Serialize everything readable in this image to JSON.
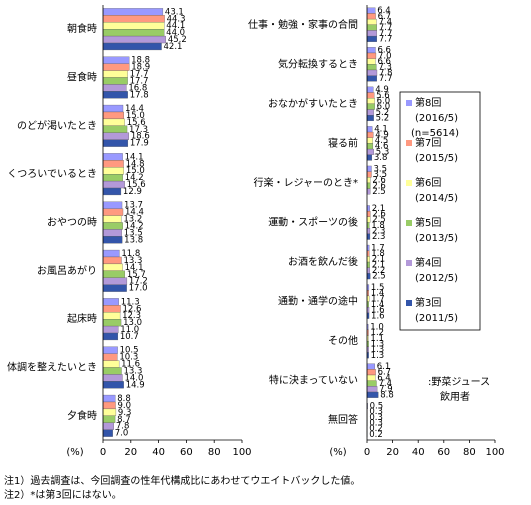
{
  "chart_data": [
    {
      "type": "bar",
      "orientation": "horizontal",
      "xlabel": "(%)",
      "xlim": [
        0,
        100
      ],
      "xticks": [
        0,
        20,
        40,
        60,
        80,
        100
      ],
      "categories": [
        "朝食時",
        "昼食時",
        "のどが渇いたとき",
        "くつろいでいるとき",
        "おやつの時",
        "お風呂あがり",
        "起床時",
        "体調を整えたいとき",
        "夕食時"
      ],
      "series": [
        {
          "name": "第8回",
          "color": "#9999ff",
          "values": [
            43.1,
            18.8,
            14.4,
            14.1,
            13.7,
            11.8,
            11.3,
            10.5,
            8.8
          ],
          "value_labels": [
            "43.1",
            "18.8",
            "14.4",
            "14.1",
            "13.7",
            "11.8",
            "11.3",
            "10.5",
            "8.8"
          ]
        },
        {
          "name": "第7回",
          "color": "#ff9980",
          "values": [
            44.3,
            18.9,
            15.0,
            14.8,
            14.4,
            13.3,
            12.6,
            10.3,
            9.0
          ],
          "value_labels": [
            "44.3",
            "18.9",
            "15.0",
            "14.8",
            "14.4",
            "13.3",
            "12.6",
            "10.3",
            "9.0"
          ]
        },
        {
          "name": "第6回",
          "color": "#ffff99",
          "values": [
            44.1,
            17.7,
            15.6,
            15.0,
            13.2,
            14.1,
            12.3,
            11.6,
            9.3
          ],
          "value_labels": [
            "44.1",
            "17.7",
            "15.6",
            "15.0",
            "13.2",
            "14.1",
            "12.3",
            "11.6",
            "9.3"
          ]
        },
        {
          "name": "第5回",
          "color": "#99cc66",
          "values": [
            44.0,
            17.7,
            17.3,
            14.2,
            14.2,
            15.7,
            13.0,
            13.3,
            8.7
          ],
          "value_labels": [
            "44.0",
            "17.7",
            "17.3",
            "14.2",
            "14.2",
            "15.7",
            "13.0",
            "13.3",
            "8.7"
          ]
        },
        {
          "name": "第4回",
          "color": "#b399d9",
          "values": [
            45.2,
            16.8,
            18.6,
            15.6,
            13.5,
            17.2,
            11.0,
            14.0,
            7.8
          ],
          "value_labels": [
            "45.2",
            "16.8",
            "18.6",
            "15.6",
            "13.5",
            "17.2",
            "11.0",
            "14.0",
            "7.8"
          ]
        },
        {
          "name": "第3回",
          "color": "#3355aa",
          "values": [
            42.1,
            17.8,
            17.9,
            12.9,
            13.8,
            17.0,
            10.7,
            14.9,
            7.0
          ],
          "value_labels": [
            "42.1",
            "17.8",
            "17.9",
            "12.9",
            "13.8",
            "17.0",
            "10.7",
            "14.9",
            "7.0"
          ]
        }
      ]
    },
    {
      "type": "bar",
      "orientation": "horizontal",
      "xlabel": "(%)",
      "xlim": [
        0,
        100
      ],
      "xticks": [
        0,
        20,
        40,
        60,
        80,
        100
      ],
      "annotation": [
        ":野菜ジュース",
        "飲用者"
      ],
      "categories": [
        "仕事・勉強・家事の合間",
        "気分転換するとき",
        "おなかがすいたとき",
        "寝る前",
        "行楽・レジャーのとき*",
        "運動・スポーツの後",
        "お酒を飲んだ後",
        "通勤・通学の途中",
        "その他",
        "特に決まっていない",
        "無回答"
      ],
      "series": [
        {
          "name": "第8回",
          "color": "#9999ff",
          "values": [
            6.4,
            6.6,
            4.9,
            4.1,
            3.5,
            2.1,
            1.7,
            1.5,
            1.0,
            6.1,
            0.5
          ],
          "value_labels": [
            "6.4",
            "6.6",
            "4.9",
            "4.1",
            "3.5",
            "2.1",
            "1.7",
            "1.5",
            "1.0",
            "6.1",
            "0.5"
          ]
        },
        {
          "name": "第7回",
          "color": "#ff9980",
          "values": [
            6.7,
            7.0,
            5.6,
            4.9,
            3.5,
            2.6,
            1.8,
            1.4,
            1.2,
            6.7,
            0.3
          ],
          "value_labels": [
            "6.7",
            "7.0",
            "5.6",
            "4.9",
            "3.5",
            "2.6",
            "1.8",
            "1.4",
            "1.2",
            "6.7",
            "0.3"
          ]
        },
        {
          "name": "第6回",
          "color": "#ffff99",
          "values": [
            7.4,
            6.6,
            6.0,
            4.5,
            2.6,
            2.5,
            2.1,
            1.7,
            1.1,
            6.4,
            0.3
          ],
          "value_labels": [
            "7.4",
            "6.6",
            "6.0",
            "4.5",
            "2.6",
            "2.5",
            "2.1",
            "1.7",
            "1.1",
            "6.4",
            "0.3"
          ]
        },
        {
          "name": "第5回",
          "color": "#99cc66",
          "values": [
            7.7,
            7.3,
            6.0,
            4.6,
            2.6,
            1.8,
            2.1,
            1.4,
            1.3,
            7.4,
            0.3
          ],
          "value_labels": [
            "7.7",
            "7.3",
            "6.0",
            "4.6",
            "2.6",
            "1.8",
            "2.1",
            "1.4",
            "1.3",
            "7.4",
            "0.3"
          ]
        },
        {
          "name": "第4回",
          "color": "#b399d9",
          "values": [
            7.7,
            7.8,
            5.2,
            5.3,
            2.5,
            2.3,
            2.2,
            1.6,
            1.3,
            7.9,
            0.2
          ],
          "value_labels": [
            "7.7",
            "7.8",
            "5.2",
            "5.3",
            "2.5",
            "2.3",
            "2.2",
            "1.6",
            "1.3",
            "7.9",
            "0.2"
          ]
        },
        {
          "name": "第3回",
          "color": "#3355aa",
          "values": [
            7.7,
            7.7,
            5.2,
            3.8,
            null,
            2.3,
            2.5,
            1.6,
            1.3,
            8.8,
            0.2
          ],
          "value_labels": [
            "7.7",
            "7.7",
            "5.2",
            "3.8",
            null,
            "2.3",
            "2.5",
            "1.6",
            "1.3",
            "8.8",
            "0.2"
          ]
        }
      ]
    }
  ],
  "legend": {
    "periods": [
      "(2016/5)",
      "(2015/5)",
      "(2014/5)",
      "(2013/5)",
      "(2012/5)",
      "(2011/5)"
    ],
    "sample": "(n=5614)"
  },
  "notes": [
    "注1）過去調査は、今回調査の性年代構成比にあわせてウエイトバックした値。",
    "注2）*は第3回にはない。"
  ]
}
